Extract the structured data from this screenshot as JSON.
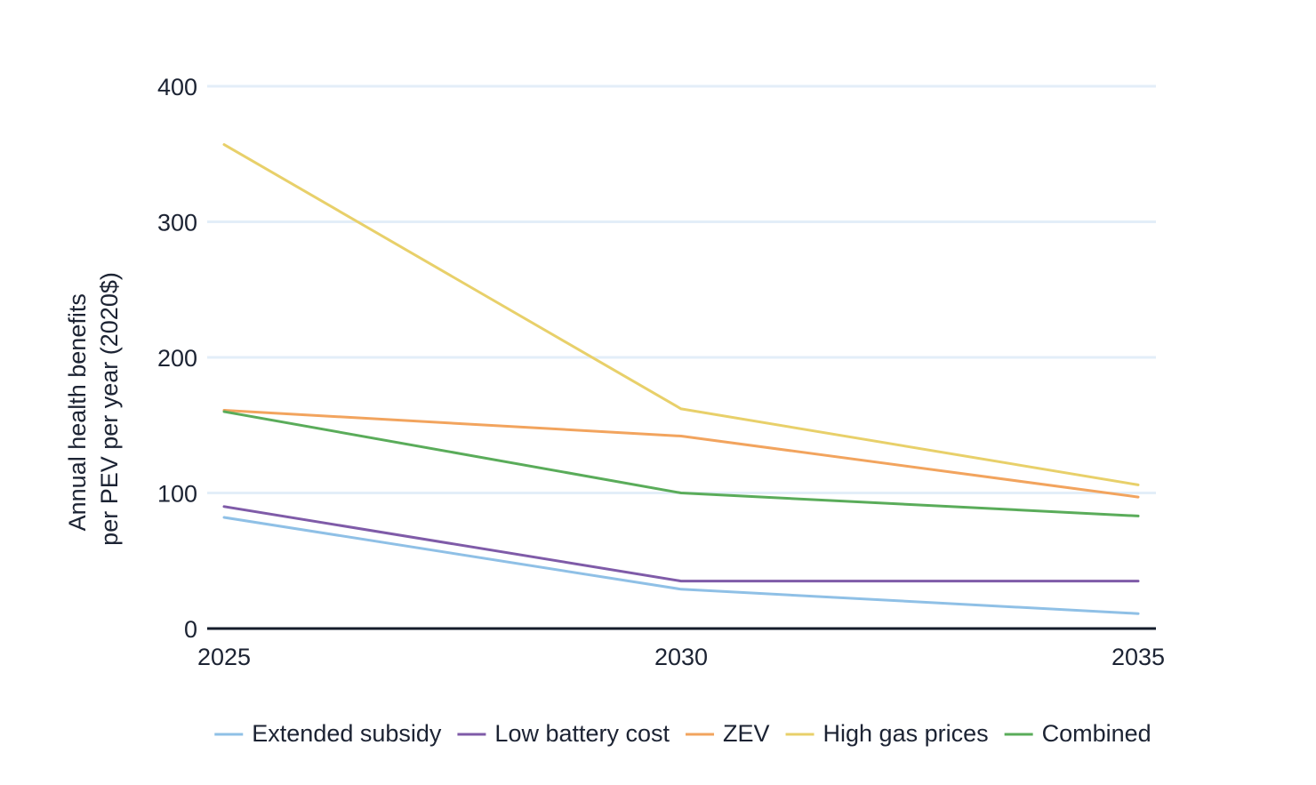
{
  "chart_data": {
    "type": "line",
    "title": "",
    "xlabel": "",
    "ylabel_lines": [
      "Annual health benefits",
      "per PEV per year (2020$)"
    ],
    "x": [
      2025,
      2030,
      2035
    ],
    "x_tick_labels": [
      "2025",
      "2030",
      "2035"
    ],
    "y_ticks": [
      0,
      100,
      200,
      300,
      400
    ],
    "y_tick_labels": [
      "0",
      "100",
      "200",
      "300",
      "400"
    ],
    "ylim": [
      0,
      400
    ],
    "grid": true,
    "legend_position": "bottom",
    "series": [
      {
        "name": "Extended subsidy",
        "color": "#8fc0e6",
        "values": [
          82,
          29,
          11
        ]
      },
      {
        "name": "Low battery cost",
        "color": "#7f5ba8",
        "values": [
          90,
          35,
          35
        ]
      },
      {
        "name": "ZEV",
        "color": "#f2a45e",
        "values": [
          161,
          142,
          97
        ]
      },
      {
        "name": "High gas prices",
        "color": "#e8d06a",
        "values": [
          357,
          162,
          106
        ]
      },
      {
        "name": "Combined",
        "color": "#5aac5a",
        "values": [
          160,
          100,
          83
        ]
      }
    ]
  },
  "colors": {
    "gridline": "#e3eef8",
    "baseline": "#141c2b",
    "text": "#1c2333"
  }
}
